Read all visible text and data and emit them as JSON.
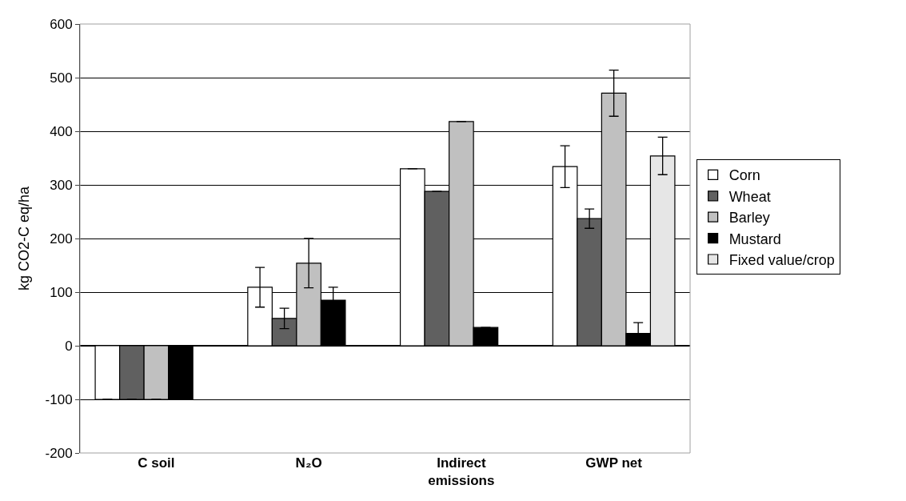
{
  "chart_data": {
    "type": "bar",
    "ylabel": "kg CO2-C eq/ha",
    "categories": [
      "C soil",
      "N₂O",
      "Indirect emissions",
      "GWP net"
    ],
    "series": [
      {
        "name": "Corn",
        "color": "#ffffff",
        "values": [
          -100,
          109,
          330,
          334
        ],
        "errors": [
          null,
          37,
          null,
          39
        ]
      },
      {
        "name": "Wheat",
        "color": "#606060",
        "values": [
          -100,
          51,
          288,
          237
        ],
        "errors": [
          null,
          19,
          null,
          18
        ]
      },
      {
        "name": "Barley",
        "color": "#c0c0c0",
        "values": [
          -100,
          154,
          418,
          471
        ],
        "errors": [
          null,
          46,
          null,
          43
        ]
      },
      {
        "name": "Mustard",
        "color": "#000000",
        "values": [
          -100,
          85,
          34,
          23
        ],
        "errors": [
          null,
          24,
          null,
          20
        ]
      },
      {
        "name": "Fixed value/crop",
        "color": "#e6e6e6",
        "values": [
          null,
          null,
          null,
          354
        ],
        "errors": [
          null,
          null,
          null,
          35
        ]
      }
    ],
    "ylim": [
      -200,
      600
    ],
    "yticks": [
      -200,
      -100,
      0,
      100,
      200,
      300,
      400,
      500,
      600
    ],
    "grid": "y",
    "legend": "right"
  }
}
